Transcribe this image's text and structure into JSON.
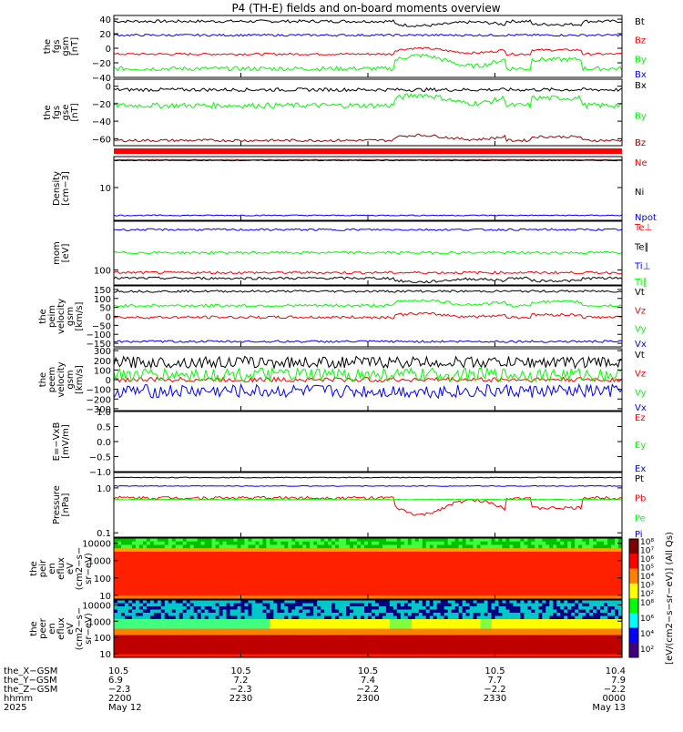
{
  "title": "P4 (TH-E) fields and on-board moments overview",
  "colors": {
    "black": "#000000",
    "red": "#ff0000",
    "green": "#00ff00",
    "blue": "#0000ff",
    "darkred": "#a00000"
  },
  "chart_data": [
    {
      "type": "line",
      "id": "fgs_gsm",
      "ylabel": [
        "the",
        "fgs",
        "gsm",
        "[nT]"
      ],
      "ylim": [
        -40,
        45
      ],
      "ticks": [
        {
          "v": 40,
          "t": "40"
        },
        {
          "v": 20,
          "t": "20"
        },
        {
          "v": 0,
          "t": "0"
        },
        {
          "v": -20,
          "t": "−20"
        },
        {
          "v": -40,
          "t": "−40"
        }
      ],
      "series": [
        {
          "name": "Bt",
          "color": "#000000",
          "base": 37,
          "noise": 2,
          "event": [
            [
              "23:00",
              {
                "p": 0.55,
                "d": -6
              }
            ]
          ]
        },
        {
          "name": "Bz",
          "color": "#ff0000",
          "base": -8,
          "noise": 1.5,
          "event": [
            [
              "23:00",
              {
                "p": 0.55,
                "d": 8
              }
            ]
          ]
        },
        {
          "name": "By",
          "color": "#00ff00",
          "base": -28,
          "noise": 3,
          "event": [
            [
              "23:00",
              {
                "p": 0.55,
                "d": 18
              }
            ]
          ]
        },
        {
          "name": "Bx",
          "color": "#0000ff",
          "base": 18,
          "noise": 1.5,
          "event": []
        }
      ]
    },
    {
      "type": "line",
      "id": "fgs_gse",
      "ylabel": [
        "the",
        "fgs",
        "gse",
        "[nT]"
      ],
      "ylim": [
        -68,
        8
      ],
      "ticks": [
        {
          "v": 0,
          "t": "0"
        },
        {
          "v": -20,
          "t": "−20"
        },
        {
          "v": -40,
          "t": "−40"
        },
        {
          "v": -60,
          "t": "−60"
        }
      ],
      "series": [
        {
          "name": "Bx",
          "color": "#000000",
          "base": -4,
          "noise": 2,
          "event": []
        },
        {
          "name": "By",
          "color": "#00ff00",
          "base": -22,
          "noise": 3,
          "event": [
            [
              "23:00",
              {
                "p": 0.55,
                "d": 12
              }
            ]
          ]
        },
        {
          "name": "Bz",
          "color": "#a00000",
          "base": -62,
          "noise": 1.5,
          "event": [
            [
              "23:00",
              {
                "p": 0.55,
                "d": 6
              }
            ]
          ]
        }
      ]
    },
    {
      "type": "line",
      "id": "density",
      "ylabel": [
        "Density",
        "[cm−3]"
      ],
      "ylog": true,
      "ylim": [
        1.5,
        60
      ],
      "ticks": [
        {
          "v": 10,
          "t": "10"
        }
      ],
      "series": [
        {
          "name": "Ne",
          "color": "#ff0000",
          "base": 50,
          "noise": 0.02,
          "event": []
        },
        {
          "name": "Ni",
          "color": "#000000",
          "base": 48,
          "noise": 0.02,
          "event": []
        },
        {
          "name": "Npot",
          "color": "#0000ff",
          "base": 2,
          "noise": 0.03,
          "event": []
        }
      ]
    },
    {
      "type": "line",
      "id": "temp",
      "ylabel": [
        "mom",
        "[eV]"
      ],
      "ylog": true,
      "ylim": [
        55,
        700
      ],
      "ticks": [
        {
          "v": 100,
          "t": "100"
        }
      ],
      "series": [
        {
          "name": "Te⊥",
          "color": "#ff0000",
          "base": 90,
          "noise": 0.05,
          "event": []
        },
        {
          "name": "Te∥",
          "color": "#000000",
          "base": 72,
          "noise": 0.05,
          "event": [
            [
              "23:00",
              {
                "p": 0.55,
                "d": -10
              }
            ]
          ]
        },
        {
          "name": "Ti⊥",
          "color": "#0000ff",
          "base": 500,
          "noise": 0.04,
          "event": []
        },
        {
          "name": "Ti∥",
          "color": "#00ff00",
          "base": 200,
          "noise": 0.05,
          "event": []
        }
      ]
    },
    {
      "type": "line",
      "id": "vel_esa",
      "ylabel": [
        "the",
        "peim",
        "velocity",
        "gsm",
        "[km/s]"
      ],
      "ylim": [
        -170,
        170
      ],
      "ticks": [
        {
          "v": 150,
          "t": "150"
        },
        {
          "v": 100,
          "t": "100"
        },
        {
          "v": 50,
          "t": "50"
        },
        {
          "v": 0,
          "t": "0"
        },
        {
          "v": -50,
          "t": "−50"
        },
        {
          "v": -100,
          "t": "−100"
        },
        {
          "v": -150,
          "t": "−150"
        }
      ],
      "series": [
        {
          "name": "Vt",
          "color": "#000000",
          "base": 140,
          "noise": 6,
          "event": []
        },
        {
          "name": "Vz",
          "color": "#ff0000",
          "base": -5,
          "noise": 8,
          "event": [
            [
              "23:00",
              {
                "p": 0.55,
                "d": 20
              }
            ]
          ]
        },
        {
          "name": "Vy",
          "color": "#00ff00",
          "base": 60,
          "noise": 8,
          "event": [
            [
              "23:00",
              {
                "p": 0.55,
                "d": 30
              }
            ]
          ]
        },
        {
          "name": "Vx",
          "color": "#0000ff",
          "base": -140,
          "noise": 6,
          "event": []
        }
      ]
    },
    {
      "type": "line",
      "id": "vel_eesa",
      "ylabel": [
        "the",
        "peem",
        "velocity",
        "gsm",
        "[km/s]"
      ],
      "ylim": [
        -320,
        320
      ],
      "ticks": [
        {
          "v": 300,
          "t": "300"
        },
        {
          "v": 200,
          "t": "200"
        },
        {
          "v": 100,
          "t": "100"
        },
        {
          "v": 0,
          "t": "0"
        },
        {
          "v": -100,
          "t": "−100"
        },
        {
          "v": -200,
          "t": "−200"
        },
        {
          "v": -300,
          "t": "−300"
        }
      ],
      "series": [
        {
          "name": "Vt",
          "color": "#000000",
          "base": 180,
          "noise": 60,
          "event": []
        },
        {
          "name": "Vz",
          "color": "#ff0000",
          "base": 0,
          "noise": 25,
          "event": []
        },
        {
          "name": "Vy",
          "color": "#00ff00",
          "base": 50,
          "noise": 70,
          "event": []
        },
        {
          "name": "Vx",
          "color": "#0000ff",
          "base": -120,
          "noise": 70,
          "event": []
        }
      ]
    },
    {
      "type": "line",
      "id": "efield",
      "ylabel": [
        "E=−VxB",
        "[mV/m]"
      ],
      "ylim": [
        -1,
        1
      ],
      "ticks": [
        {
          "v": 1,
          "t": "1.0"
        },
        {
          "v": 0.5,
          "t": "0.5"
        },
        {
          "v": 0,
          "t": "0.0"
        },
        {
          "v": -0.5,
          "t": "−0.5"
        },
        {
          "v": -1,
          "t": "−1.0"
        }
      ],
      "series": [
        {
          "name": "Ez",
          "color": "#ff0000",
          "base": null
        },
        {
          "name": "Ey",
          "color": "#00ff00",
          "base": null
        },
        {
          "name": "Ex",
          "color": "#0000ff",
          "base": null
        }
      ]
    },
    {
      "type": "line",
      "id": "pressure",
      "ylabel": [
        "Pressure",
        "[nPa]"
      ],
      "ylog": true,
      "ylim": [
        0.08,
        2.2
      ],
      "ticks": [
        {
          "v": 1,
          "t": "1.0"
        },
        {
          "v": 0.1,
          "t": "0.1"
        }
      ],
      "series": [
        {
          "name": "Pt",
          "color": "#000000",
          "base": 1.7,
          "noise": 0.02,
          "event": []
        },
        {
          "name": "Pb",
          "color": "#ff0000",
          "base": 0.6,
          "noise": 0.08,
          "event": [
            [
              "23:00",
              {
                "p": 0.55,
                "d": -0.35
              }
            ]
          ]
        },
        {
          "name": "Pe",
          "color": "#00ff00",
          "base": 0.55,
          "noise": 0.02,
          "event": []
        },
        {
          "name": "Pi",
          "color": "#0000ff",
          "base": 1.1,
          "noise": 0.02,
          "event": []
        }
      ]
    },
    {
      "type": "heatmap",
      "id": "peir",
      "ylabel": [
        "the",
        "peir",
        "en",
        "eflux",
        "eV",
        "(cm2−s−",
        "sr−eV)"
      ],
      "ticks": [
        {
          "v": 10000,
          "t": "10000"
        },
        {
          "v": 1000,
          "t": "1000"
        },
        {
          "v": 100,
          "t": "100"
        },
        {
          "v": 10,
          "t": "10"
        }
      ]
    },
    {
      "type": "heatmap",
      "id": "peer",
      "ylabel": [
        "the",
        "peer",
        "en",
        "eflux",
        "eV",
        "(cm2−s−",
        "sr−eV)"
      ],
      "ticks": [
        {
          "v": 10000,
          "t": "10000"
        },
        {
          "v": 1000,
          "t": "1000"
        },
        {
          "v": 100,
          "t": "100"
        },
        {
          "v": 10,
          "t": "10"
        }
      ]
    }
  ],
  "colorbar": {
    "label": "[eV/(cm2−s−sr−eV)] (All Qs)",
    "top_ticks": [
      "10⁸",
      "10⁷",
      "10⁶",
      "10⁵",
      "10⁴",
      "10³",
      "10²"
    ],
    "bottom_ticks": [
      "10⁸",
      "10⁶",
      "10⁴",
      "10²"
    ]
  },
  "xaxis": {
    "rows": [
      {
        "label": "the_X−GSM",
        "values": [
          "10.5",
          "10.5",
          "10.5",
          "10.5",
          "10.4"
        ]
      },
      {
        "label": "the_Y−GSM",
        "values": [
          "6.9",
          "7.2",
          "7.4",
          "7.7",
          "7.9"
        ]
      },
      {
        "label": "the_Z−GSM",
        "values": [
          "−2.3",
          "−2.3",
          "−2.2",
          "−2.2",
          "−2.2"
        ]
      },
      {
        "label": "hhmm",
        "values": [
          "2200",
          "2230",
          "2300",
          "2330",
          "0000"
        ]
      },
      {
        "label": "2025",
        "values": [
          "May 12",
          "",
          "",
          "",
          "May 13"
        ]
      }
    ]
  }
}
